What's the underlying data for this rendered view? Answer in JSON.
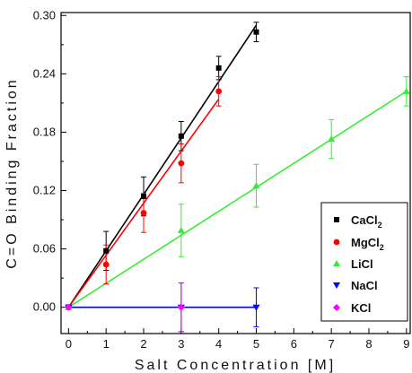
{
  "chart_data": {
    "type": "scatter",
    "title": "",
    "xlabel": "Salt Concentration [M]",
    "ylabel": "C=O Binding Fraction",
    "xlim": [
      -0.2,
      9.1
    ],
    "ylim": [
      -0.027,
      0.303
    ],
    "x_ticks": [
      0,
      1,
      2,
      3,
      4,
      5,
      6,
      7,
      8,
      9
    ],
    "y_ticks": [
      0.0,
      0.06,
      0.12,
      0.18,
      0.24,
      0.3
    ],
    "y_tick_labels": [
      "0.00",
      "0.06",
      "0.12",
      "0.18",
      "0.24",
      "0.30"
    ],
    "grid": false,
    "legend": "bottom-right",
    "series": [
      {
        "name": "CaCl",
        "name_subscript": "2",
        "color": "#000000",
        "marker": "square",
        "x": [
          0,
          1,
          2,
          3,
          4,
          5
        ],
        "y": [
          0.0,
          0.058,
          0.114,
          0.176,
          0.246,
          0.283
        ],
        "err": [
          0.0,
          0.02,
          0.02,
          0.015,
          0.012,
          0.01
        ],
        "fit": [
          [
            0,
            0.0
          ],
          [
            5,
            0.29
          ]
        ]
      },
      {
        "name": "MgCl",
        "name_subscript": "2",
        "color": "#ff0000",
        "marker": "circle",
        "x": [
          0,
          1,
          2,
          3,
          4
        ],
        "y": [
          0.0,
          0.044,
          0.097,
          0.148,
          0.222
        ],
        "err": [
          0.0,
          0.02,
          0.02,
          0.02,
          0.015
        ],
        "fit": [
          [
            0,
            0.0
          ],
          [
            4,
            0.214
          ]
        ]
      },
      {
        "name": "LiCl",
        "name_subscript": "",
        "color": "#33ee33",
        "marker": "triangle-up",
        "x": [
          0,
          3,
          5,
          7,
          9
        ],
        "y": [
          0.0,
          0.079,
          0.125,
          0.173,
          0.222
        ],
        "err": [
          0.0,
          0.027,
          0.022,
          0.02,
          0.015
        ],
        "fit": [
          [
            0,
            0.0
          ],
          [
            9,
            0.222
          ]
        ]
      },
      {
        "name": "NaCl",
        "name_subscript": "",
        "color": "#0000ff",
        "marker": "triangle-down",
        "x": [
          0,
          3,
          5
        ],
        "y": [
          0.0,
          0.0,
          0.0
        ],
        "err": [
          0.0,
          0.025,
          0.02
        ],
        "fit": [
          [
            0,
            0.0
          ],
          [
            5,
            0.0
          ]
        ]
      },
      {
        "name": "KCl",
        "name_subscript": "",
        "color": "#ff00ff",
        "marker": "diamond",
        "x": [
          0,
          3
        ],
        "y": [
          0.0,
          0.0
        ],
        "err": [
          0.0,
          0.025
        ],
        "fit": []
      }
    ]
  }
}
